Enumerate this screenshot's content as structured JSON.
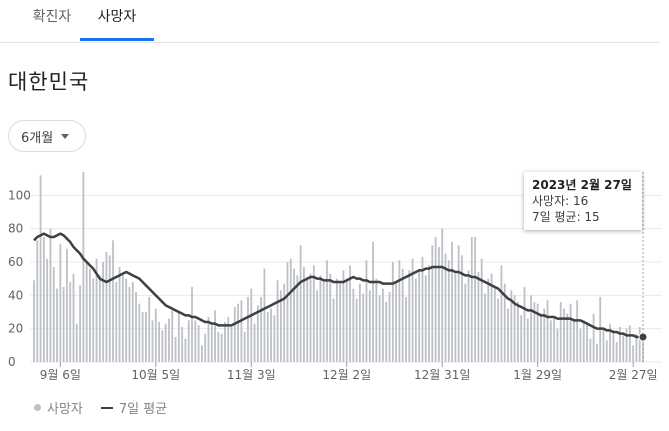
{
  "tabs": [
    {
      "label": "확진자"
    },
    {
      "label": "사망자"
    }
  ],
  "region_title": "대한민국",
  "period_selector": {
    "label": "6개월"
  },
  "chart_data": {
    "type": "bar",
    "title": "",
    "xlabel": "",
    "ylabel": "",
    "ylim": [
      0,
      120
    ],
    "yticks": [
      0,
      20,
      40,
      60,
      80,
      100
    ],
    "grid": true,
    "x_start": "2022-08-29",
    "x_end": "2023-02-27",
    "xtick_labels": [
      {
        "label": "9월 6일",
        "date": "2022-09-06"
      },
      {
        "label": "10월 5일",
        "date": "2022-10-05"
      },
      {
        "label": "11월 3일",
        "date": "2022-11-03"
      },
      {
        "label": "12월 2일",
        "date": "2022-12-02"
      },
      {
        "label": "12월 31일",
        "date": "2022-12-31"
      },
      {
        "label": "1월 29일",
        "date": "2023-01-29"
      },
      {
        "label": "2월 27일",
        "date": "2023-02-27"
      }
    ],
    "series": [
      {
        "name": "사망자",
        "kind": "bar",
        "color": "#bdc1c6",
        "values": [
          49,
          73,
          112,
          75,
          62,
          80,
          57,
          44,
          71,
          45,
          68,
          48,
          53,
          23,
          46,
          114,
          60,
          56,
          50,
          62,
          52,
          60,
          66,
          64,
          73,
          48,
          57,
          52,
          50,
          45,
          48,
          42,
          35,
          30,
          30,
          39,
          25,
          32,
          24,
          19,
          23,
          26,
          31,
          15,
          30,
          21,
          14,
          25,
          45,
          25,
          22,
          10,
          17,
          27,
          22,
          31,
          18,
          17,
          24,
          27,
          21,
          33,
          35,
          37,
          18,
          39,
          44,
          23,
          34,
          39,
          56,
          30,
          32,
          28,
          49,
          43,
          47,
          60,
          62,
          56,
          52,
          70,
          57,
          50,
          53,
          58,
          43,
          52,
          48,
          61,
          53,
          38,
          50,
          48,
          55,
          50,
          58,
          44,
          38,
          47,
          41,
          61,
          43,
          72,
          50,
          40,
          44,
          36,
          42,
          60,
          48,
          61,
          56,
          39,
          55,
          62,
          50,
          56,
          63,
          52,
          58,
          70,
          75,
          69,
          80,
          65,
          61,
          72,
          53,
          70,
          64,
          47,
          55,
          75,
          75,
          54,
          62,
          41,
          50,
          53,
          45,
          38,
          58,
          47,
          32,
          43,
          40,
          36,
          28,
          45,
          26,
          40,
          36,
          35,
          29,
          32,
          37,
          25,
          27,
          20,
          36,
          32,
          29,
          35,
          26,
          37,
          20,
          25,
          24,
          14,
          29,
          11,
          39,
          20,
          13,
          23,
          19,
          12,
          21,
          16,
          20,
          22,
          10,
          17,
          21,
          16
        ]
      },
      {
        "name": "7일 평균",
        "kind": "line",
        "color": "#3c4043",
        "values": [
          73,
          75,
          76,
          77,
          76,
          75,
          75,
          76,
          77,
          76,
          74,
          72,
          69,
          67,
          65,
          62,
          60,
          58,
          56,
          53,
          50,
          49,
          48,
          49,
          50,
          51,
          52,
          53,
          54,
          53,
          52,
          51,
          50,
          48,
          46,
          44,
          42,
          40,
          38,
          36,
          34,
          33,
          32,
          31,
          30,
          29,
          28,
          28,
          27,
          27,
          26,
          25,
          24,
          24,
          23,
          23,
          22,
          22,
          22,
          22,
          22,
          23,
          24,
          25,
          26,
          27,
          28,
          29,
          30,
          31,
          32,
          33,
          34,
          35,
          36,
          37,
          38,
          40,
          42,
          44,
          46,
          48,
          49,
          50,
          51,
          51,
          50,
          50,
          49,
          49,
          49,
          48,
          48,
          48,
          48,
          49,
          50,
          51,
          50,
          50,
          49,
          49,
          48,
          48,
          48,
          48,
          47,
          47,
          47,
          47,
          48,
          49,
          50,
          51,
          52,
          53,
          54,
          55,
          55,
          56,
          56,
          57,
          57,
          57,
          57,
          56,
          55,
          55,
          54,
          54,
          53,
          52,
          52,
          51,
          51,
          50,
          49,
          48,
          47,
          46,
          45,
          44,
          42,
          40,
          38,
          37,
          35,
          34,
          33,
          32,
          31,
          31,
          30,
          29,
          28,
          28,
          27,
          27,
          27,
          26,
          26,
          26,
          26,
          26,
          25,
          25,
          25,
          24,
          23,
          22,
          21,
          20,
          20,
          20,
          19,
          19,
          18,
          18,
          17,
          17,
          16,
          16,
          16,
          15,
          15,
          15
        ]
      }
    ]
  },
  "tooltip": {
    "date": "2023년 2월 27일",
    "deaths": "사망자: 16",
    "avg": "7일 평균: 15"
  },
  "legend": {
    "deaths": "사망자",
    "avg": "7일 평균"
  }
}
